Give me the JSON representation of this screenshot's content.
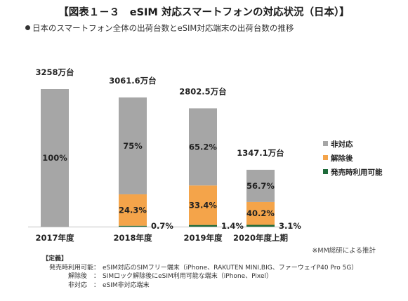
{
  "title": "【図表１－３　eSIM 対応スマートフォンの対応状況（日本）】",
  "subtitle": "日本のスマートフォン全体の出荷台数とeSIM対応端末の出荷台数の推移",
  "chart_data": {
    "type": "bar",
    "stacked": true,
    "categories": [
      "2017年度",
      "2018年度",
      "2019年度",
      "2020年度上期"
    ],
    "totals": [
      3258,
      3061.6,
      2802.5,
      1347.1
    ],
    "total_labels": [
      "3258万台",
      "3061.6万台",
      "2802.5万台",
      "1347.1万台"
    ],
    "unit": "万台",
    "series": [
      {
        "name": "発売時利用可能",
        "color": "#1e6b3a",
        "percent": [
          0,
          0.7,
          1.4,
          3.1
        ],
        "labels": [
          "",
          "0.7%",
          "1.4%",
          "3.1%"
        ]
      },
      {
        "name": "解除後",
        "color": "#f4a44a",
        "percent": [
          0,
          24.3,
          33.4,
          40.2
        ],
        "labels": [
          "",
          "24.3%",
          "33.4%",
          "40.2%"
        ]
      },
      {
        "name": "非対応",
        "color": "#a6a6a6",
        "percent": [
          100,
          75,
          65.2,
          56.7
        ],
        "labels": [
          "100%",
          "75%",
          "65.2%",
          "56.7%"
        ]
      }
    ],
    "legend_order": [
      "非対応",
      "解除後",
      "発売時利用可能"
    ],
    "legend_position": "right",
    "grid": false
  },
  "note": "※MM総研による推計",
  "definitions": {
    "heading": "【定義】",
    "rows": [
      {
        "term": "発売時利用可能：",
        "desc": "eSIM対応のSIMフリー端末（iPhone、RAKUTEN MINI,BIG、ファーウェイP40 Pro 5G）"
      },
      {
        "term": "解除後　：",
        "desc": "SIMロック解除後にeSIM利用可能な端末（iPhone、Pixel）"
      },
      {
        "term": "非対応　：",
        "desc": "eSIM非対応端末"
      }
    ]
  }
}
